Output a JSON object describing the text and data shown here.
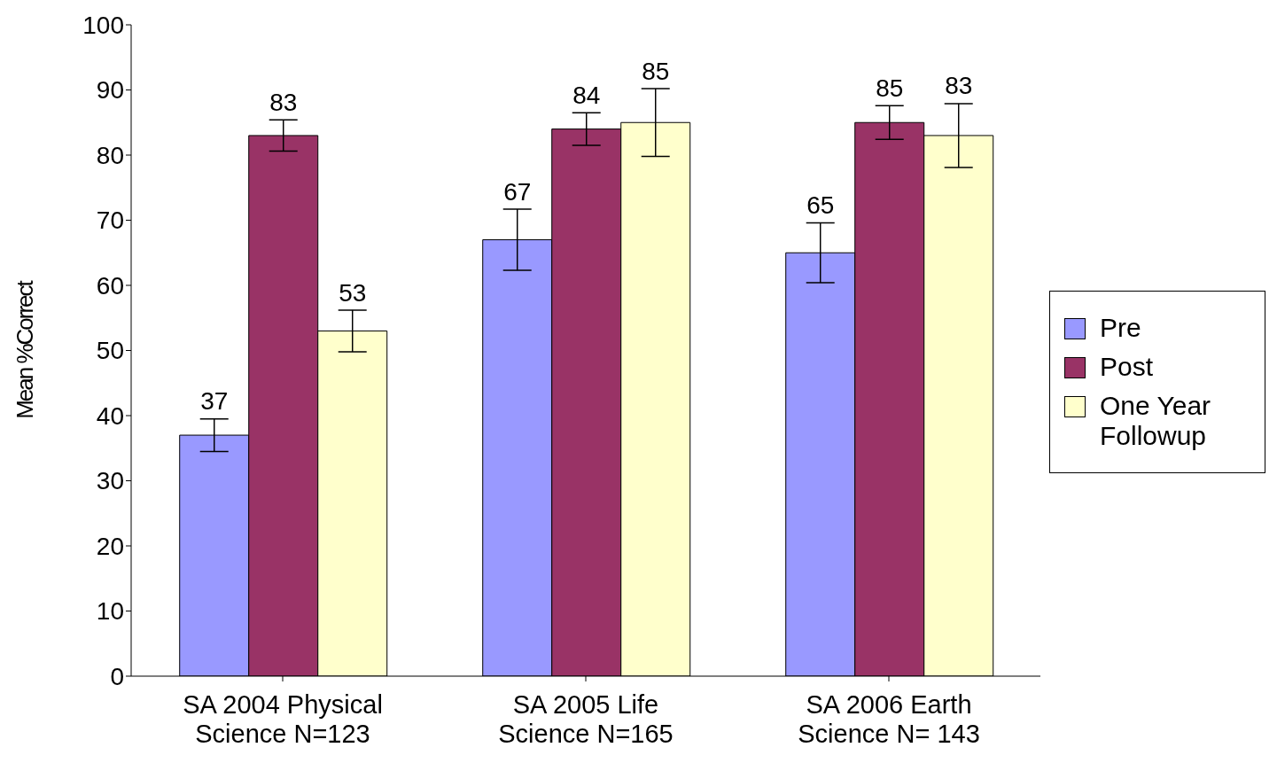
{
  "chart_data": {
    "type": "bar",
    "ylabel": "Mean %Correct",
    "categories": [
      "SA 2004 Physical Science N=123",
      "SA 2005 Life Science N=165",
      "SA 2006 Earth Science N= 143"
    ],
    "series": [
      {
        "name": "Pre",
        "color": "#9999ff",
        "values": [
          37,
          67,
          65
        ],
        "errors": [
          2.5,
          4.7,
          4.6
        ]
      },
      {
        "name": "Post",
        "color": "#993366",
        "values": [
          83,
          84,
          85
        ],
        "errors": [
          2.4,
          2.5,
          2.6
        ]
      },
      {
        "name": "One Year Followup",
        "color": "#ffffcc",
        "values": [
          53,
          85,
          83
        ],
        "errors": [
          3.2,
          5.2,
          4.9
        ]
      }
    ],
    "ylim": [
      0,
      100
    ],
    "yticks": [
      0,
      10,
      20,
      30,
      40,
      50,
      60,
      70,
      80,
      90,
      100
    ],
    "data_labels": true,
    "legend": "right",
    "grid": false
  }
}
